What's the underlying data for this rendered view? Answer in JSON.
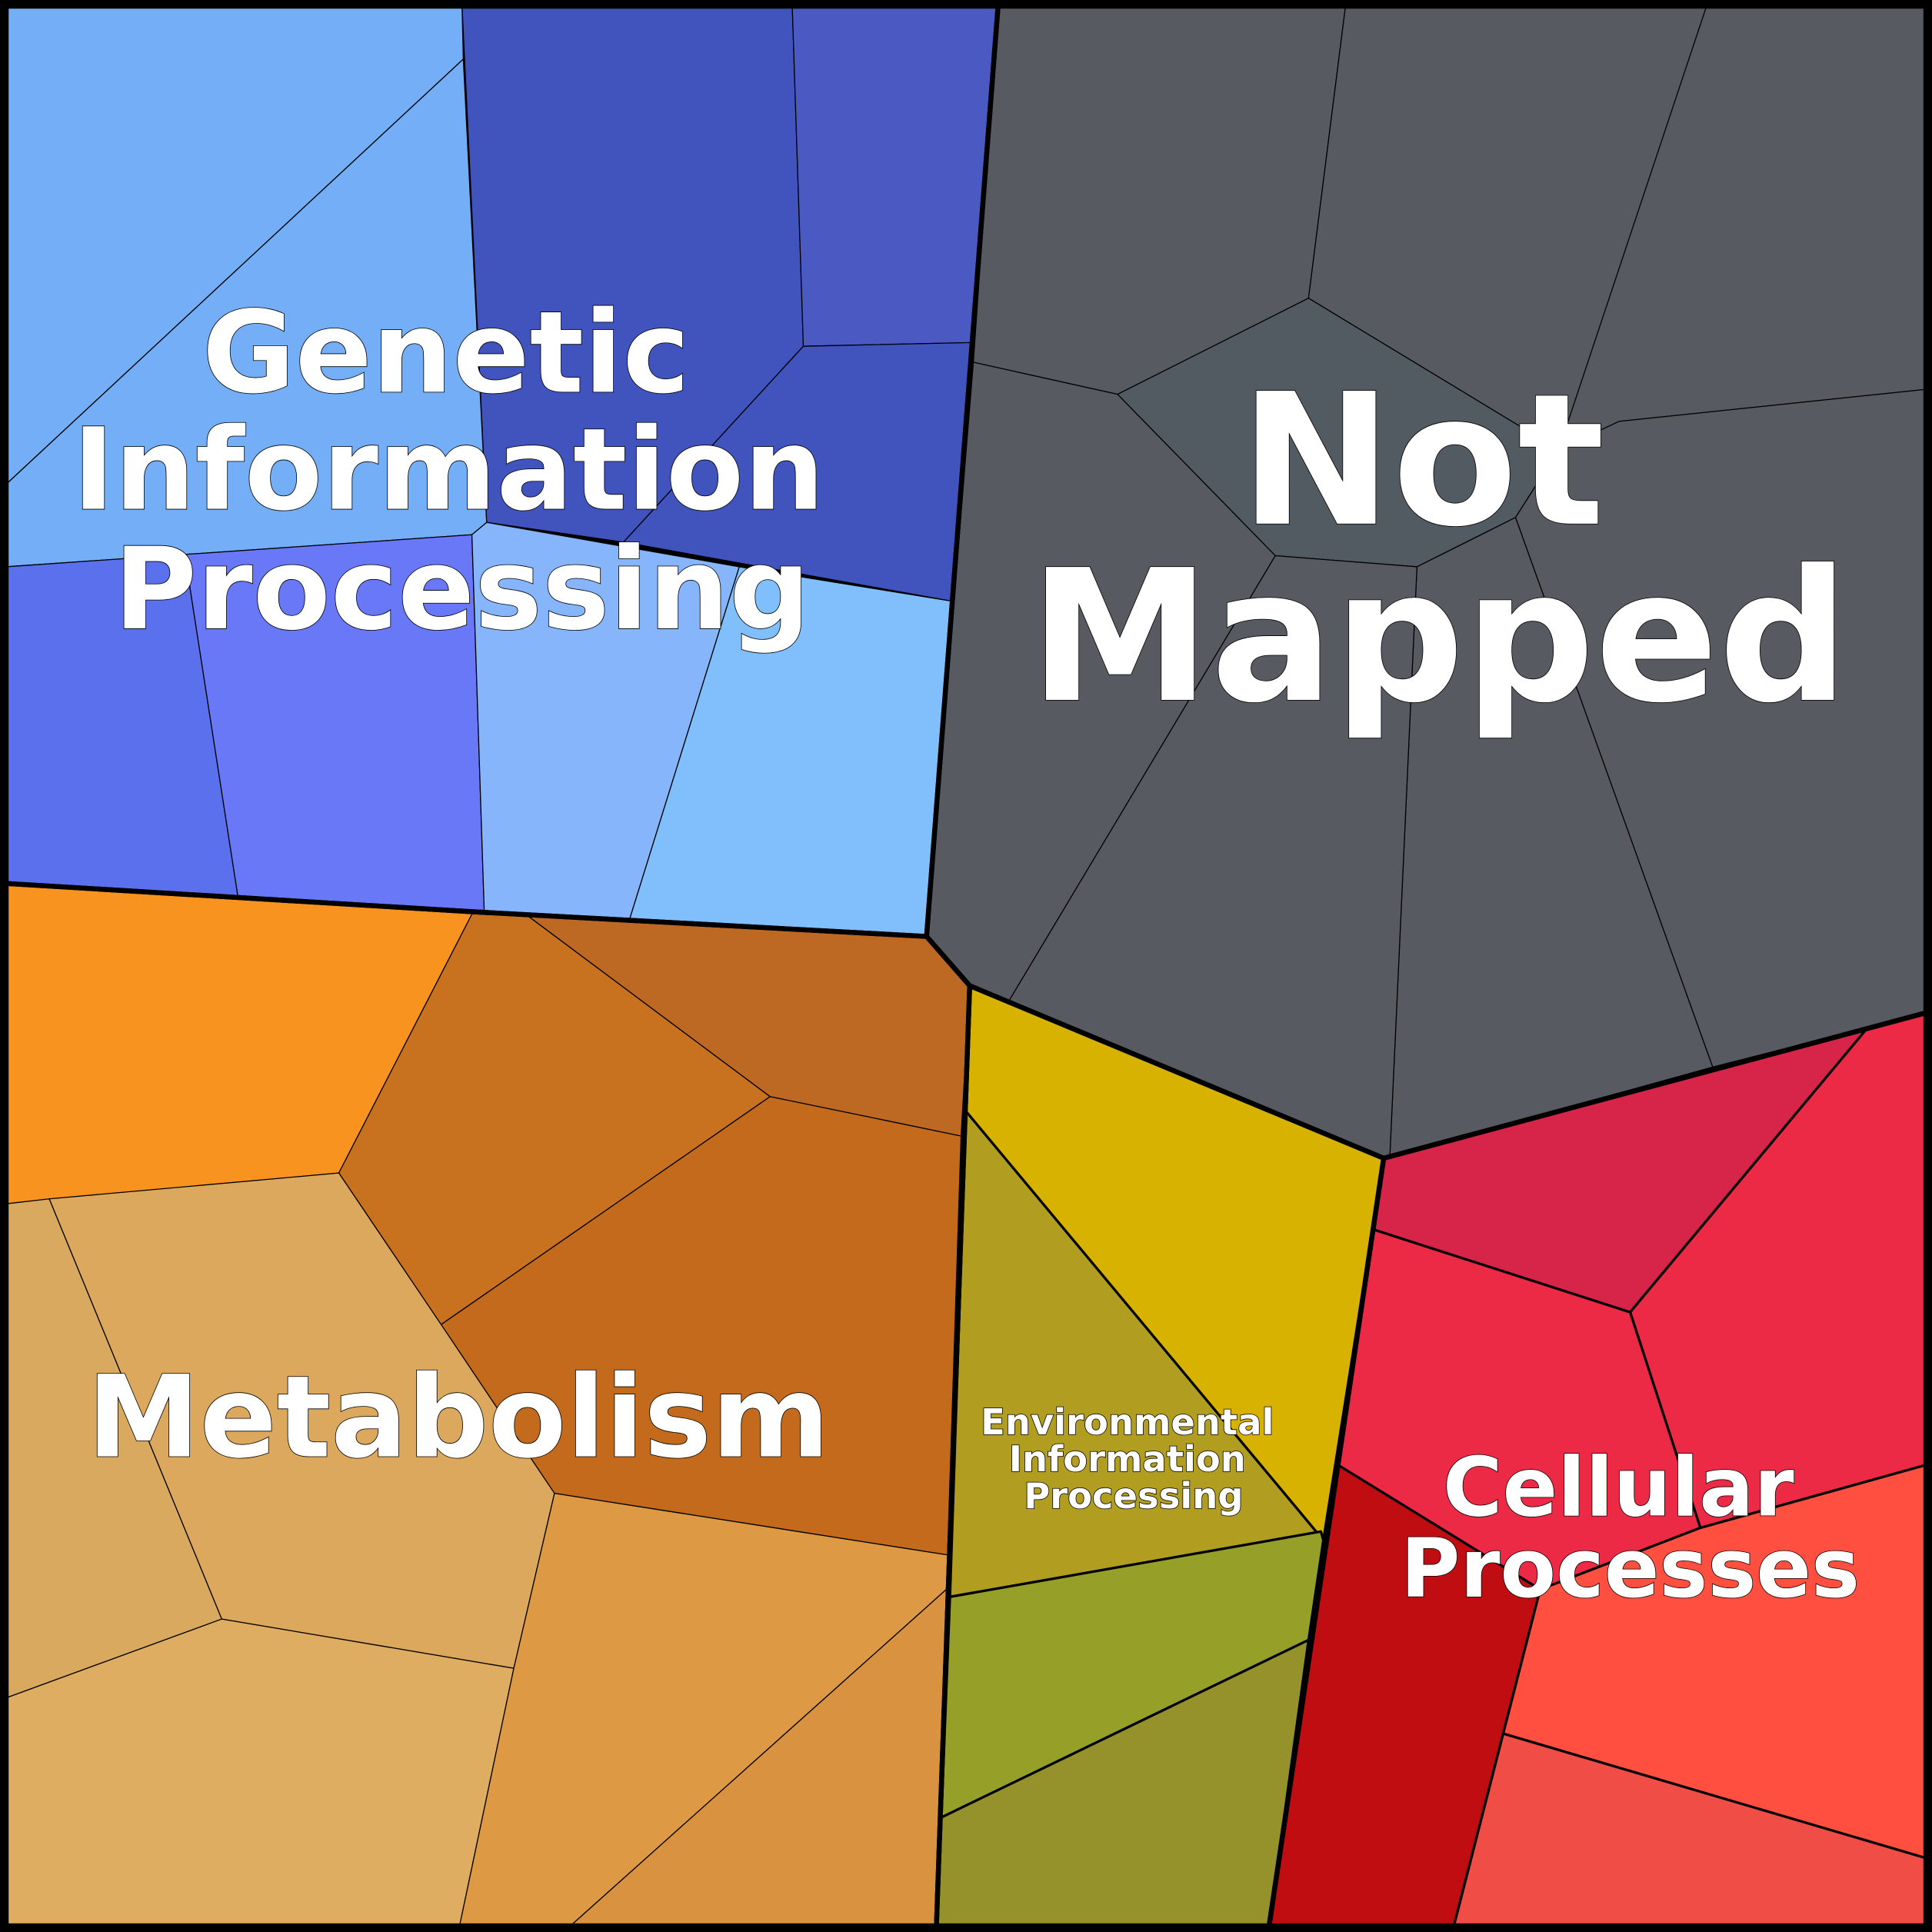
{
  "chart_data": {
    "type": "voronoi-treemap",
    "groups": [
      {
        "name": "Genetic Information Processing",
        "label_lines": [
          "Genetic",
          "Information",
          "Processing"
        ],
        "cell_colors": [
          "#74aef6",
          "#74aef6",
          "#4153bd",
          "#4b59c3",
          "#4153bd",
          "#5b70ec",
          "#6878f7",
          "#86b5fc",
          "#80bffc"
        ]
      },
      {
        "name": "Not Mapped",
        "label_lines": [
          "Not",
          "Mapped"
        ],
        "cell_colors": [
          "#575b61",
          "#575b61",
          "#525a62",
          "#575b61",
          "#575b61",
          "#575b61",
          "#575b61",
          "#575b61"
        ]
      },
      {
        "name": "Metabolism",
        "label_lines": [
          "Metabolism"
        ],
        "cell_colors": [
          "#f7931e",
          "#c8711e",
          "#bd6924",
          "#c36a1c",
          "#d8a95e",
          "#dba85e",
          "#dfad62",
          "#dd9944",
          "#d99240"
        ]
      },
      {
        "name": "Environmental Information Processing",
        "label_lines": [
          "Environmental",
          "Information",
          "Processing"
        ],
        "cell_colors": [
          "#d8b200",
          "#b19d1f",
          "#96a028",
          "#95912b"
        ]
      },
      {
        "name": "Cellular Processes",
        "label_lines": [
          "Cellular",
          "Processes"
        ],
        "cell_colors": [
          "#d7254a",
          "#ec2a45",
          "#ec2a45",
          "#bf0d12",
          "#ff4f41",
          "#ef4d46"
        ]
      }
    ]
  }
}
